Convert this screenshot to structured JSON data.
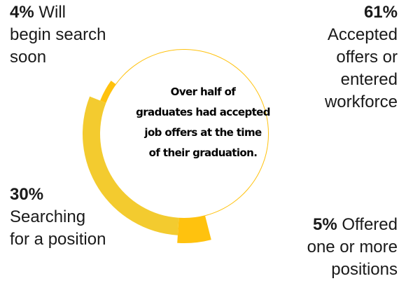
{
  "chart_data": {
    "type": "pie",
    "donut": true,
    "center_text_lines": [
      "Over half of",
      "graduates had accepted",
      "job offers at the time",
      "of their graduation."
    ],
    "slices": [
      {
        "value": 61,
        "pct_label": "61%",
        "lines": [
          "Accepted",
          "offers or",
          "entered",
          "workforce"
        ]
      },
      {
        "value": 5,
        "pct_label": "5%",
        "lines": [
          "Offered",
          "one or more",
          "positions"
        ]
      },
      {
        "value": 30,
        "pct_label": "30%",
        "lines": [
          "Searching",
          "for a position"
        ]
      },
      {
        "value": 4,
        "pct_label": "4%",
        "lines": [
          "Will",
          "begin search",
          "soon"
        ]
      }
    ],
    "slice_colors": [
      "#FFC20E",
      "#FFC20E",
      "#F3CB2F",
      "#FFC20E"
    ]
  }
}
